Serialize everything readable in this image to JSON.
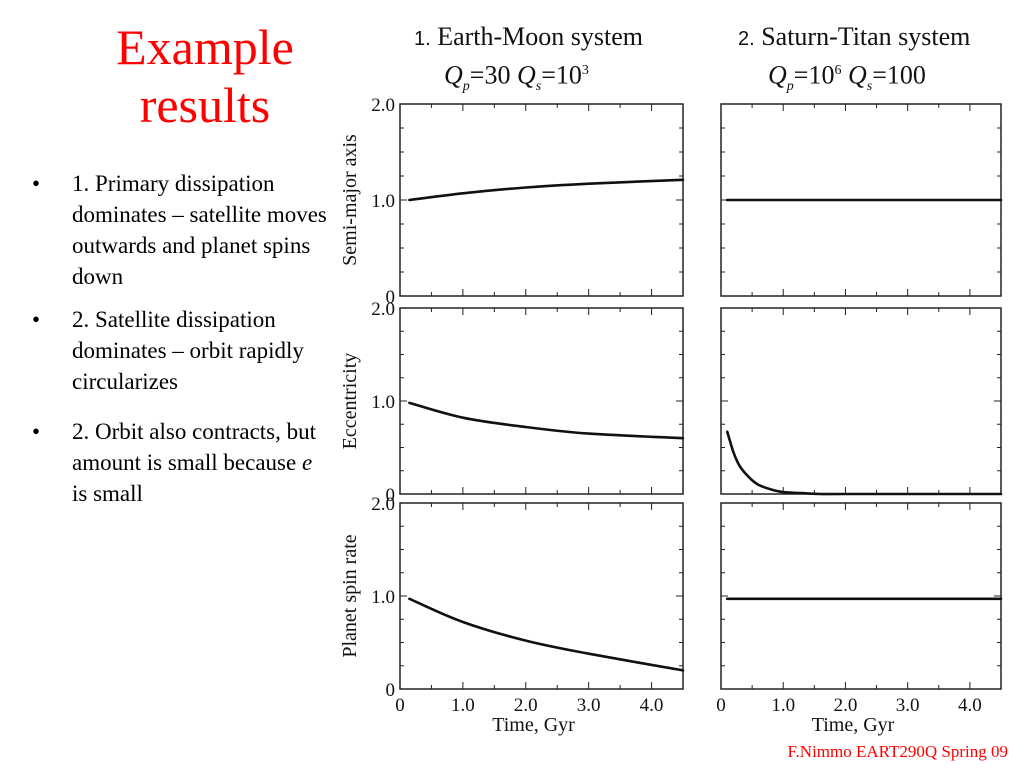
{
  "slide": {
    "title_line1": "Example",
    "title_line2": "results",
    "bullets": [
      "1. Primary dissipation dominates – satellite moves outwards and planet spins down",
      "2. Satellite dissipation dominates – orbit rapidly circularizes",
      "2. Orbit also contracts, but amount is small because e is small"
    ],
    "bullet3_before_e": "2. Orbit also contracts, but amount is small because ",
    "bullet3_e": "e",
    "bullet3_after_e": " is small",
    "footer": "F.Nimmo EART290Q Spring 09"
  },
  "systems": [
    {
      "number": "1.",
      "name": "Earth-Moon system",
      "Qp": "30",
      "Qs_base": "10",
      "Qs_exp": "3"
    },
    {
      "number": "2.",
      "name": "Saturn-Titan system",
      "Qp_base": "10",
      "Qp_exp": "6",
      "Qs": "100"
    }
  ],
  "colors": {
    "title": "#ff0000",
    "line": "#111111",
    "footer": "#ff0000"
  },
  "chart_data": [
    {
      "type": "line",
      "system": "Earth-Moon system",
      "ylabel": "Semi-major axis",
      "ylim": [
        0,
        2.0
      ],
      "xlim": [
        0,
        4.5
      ],
      "yticks": [
        "0",
        "1.0",
        "2.0"
      ],
      "x": [
        0.15,
        1.0,
        2.0,
        3.0,
        4.5
      ],
      "y": [
        1.0,
        1.07,
        1.13,
        1.17,
        1.21
      ]
    },
    {
      "type": "line",
      "system": "Saturn-Titan system",
      "ylabel": "",
      "ylim": [
        0,
        2.0
      ],
      "xlim": [
        0,
        4.5
      ],
      "x": [
        0.1,
        1.0,
        2.0,
        3.0,
        4.5
      ],
      "y": [
        1.0,
        1.0,
        1.0,
        1.0,
        1.0
      ]
    },
    {
      "type": "line",
      "system": "Earth-Moon system",
      "ylabel": "Eccentricity",
      "ylim": [
        0,
        2.0
      ],
      "xlim": [
        0,
        4.5
      ],
      "yticks": [
        "0",
        "1.0",
        "2.0"
      ],
      "x": [
        0.15,
        1.0,
        2.0,
        3.0,
        4.5
      ],
      "y": [
        0.98,
        0.82,
        0.72,
        0.65,
        0.6
      ]
    },
    {
      "type": "line",
      "system": "Saturn-Titan system",
      "ylabel": "",
      "ylim": [
        0,
        2.0
      ],
      "xlim": [
        0,
        4.5
      ],
      "x": [
        0.1,
        0.2,
        0.3,
        0.45,
        0.6,
        0.8,
        1.0,
        1.3,
        1.6,
        2.0,
        4.5
      ],
      "y": [
        0.67,
        0.45,
        0.3,
        0.18,
        0.1,
        0.05,
        0.02,
        0.01,
        0.0,
        0.0,
        0.0
      ]
    },
    {
      "type": "line",
      "system": "Earth-Moon system",
      "ylabel": "Planet spin rate",
      "xlabel": "Time, Gyr",
      "ylim": [
        0,
        2.0
      ],
      "xlim": [
        0,
        4.5
      ],
      "yticks": [
        "0",
        "1.0",
        "2.0"
      ],
      "xticks": [
        "0",
        "1.0",
        "2.0",
        "3.0",
        "4.0"
      ],
      "x": [
        0.15,
        1.0,
        2.0,
        3.0,
        4.5
      ],
      "y": [
        0.97,
        0.72,
        0.52,
        0.38,
        0.2
      ]
    },
    {
      "type": "line",
      "system": "Saturn-Titan system",
      "ylabel": "",
      "xlabel": "Time, Gyr",
      "ylim": [
        0,
        2.0
      ],
      "xlim": [
        0,
        4.5
      ],
      "xticks": [
        "0",
        "1.0",
        "2.0",
        "3.0",
        "4.0"
      ],
      "x": [
        0.1,
        1.0,
        2.0,
        3.0,
        4.5
      ],
      "y": [
        0.97,
        0.97,
        0.97,
        0.97,
        0.97
      ]
    }
  ]
}
